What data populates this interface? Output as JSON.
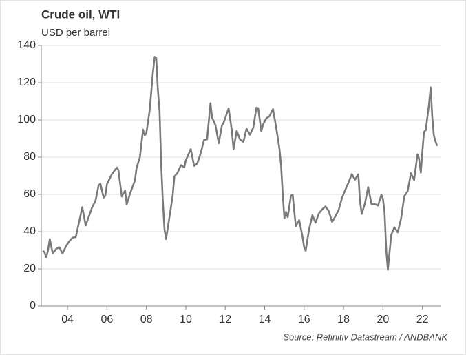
{
  "chart_data": {
    "type": "line",
    "title": "Crude oil, WTI",
    "subtitle": "USD per barrel",
    "source": "Source: Refinitiv Datastream / ANDBANK",
    "color": "#7a7a7a",
    "grid": true,
    "xlim": [
      2002.67,
      2022.92
    ],
    "xticks": [
      {
        "value": 2004,
        "label": "04"
      },
      {
        "value": 2006,
        "label": "06"
      },
      {
        "value": 2008,
        "label": "08"
      },
      {
        "value": 2010,
        "label": "10"
      },
      {
        "value": 2012,
        "label": "12"
      },
      {
        "value": 2014,
        "label": "14"
      },
      {
        "value": 2016,
        "label": "16"
      },
      {
        "value": 2018,
        "label": "18"
      },
      {
        "value": 2020,
        "label": "20"
      },
      {
        "value": 2022,
        "label": "22"
      }
    ],
    "ylim": [
      0,
      140
    ],
    "yticks": [
      0,
      20,
      40,
      60,
      80,
      100,
      120,
      140
    ],
    "x": [
      2002.75,
      2002.83,
      2002.92,
      2003.0,
      2003.1,
      2003.25,
      2003.42,
      2003.58,
      2003.75,
      2003.92,
      2004.08,
      2004.25,
      2004.42,
      2004.58,
      2004.75,
      2004.83,
      2004.92,
      2005.08,
      2005.25,
      2005.42,
      2005.58,
      2005.67,
      2005.83,
      2005.92,
      2006.0,
      2006.25,
      2006.5,
      2006.58,
      2006.75,
      2006.92,
      2007.0,
      2007.17,
      2007.42,
      2007.5,
      2007.67,
      2007.83,
      2007.92,
      2008.0,
      2008.17,
      2008.33,
      2008.42,
      2008.5,
      2008.58,
      2008.67,
      2008.75,
      2008.83,
      2008.92,
      2009.0,
      2009.17,
      2009.33,
      2009.42,
      2009.58,
      2009.75,
      2009.92,
      2010.0,
      2010.25,
      2010.42,
      2010.58,
      2010.75,
      2010.92,
      2011.08,
      2011.25,
      2011.33,
      2011.5,
      2011.67,
      2011.83,
      2011.92,
      2012.17,
      2012.33,
      2012.42,
      2012.58,
      2012.75,
      2012.92,
      2013.08,
      2013.25,
      2013.42,
      2013.58,
      2013.67,
      2013.83,
      2013.92,
      2014.08,
      2014.25,
      2014.42,
      2014.58,
      2014.75,
      2014.83,
      2014.92,
      2015.0,
      2015.08,
      2015.17,
      2015.33,
      2015.42,
      2015.5,
      2015.58,
      2015.75,
      2015.92,
      2016.0,
      2016.08,
      2016.25,
      2016.42,
      2016.58,
      2016.75,
      2016.92,
      2017.08,
      2017.25,
      2017.42,
      2017.58,
      2017.75,
      2017.92,
      2018.08,
      2018.25,
      2018.42,
      2018.58,
      2018.75,
      2018.83,
      2018.92,
      2019.08,
      2019.25,
      2019.42,
      2019.58,
      2019.75,
      2019.92,
      2020.0,
      2020.08,
      2020.17,
      2020.25,
      2020.33,
      2020.42,
      2020.58,
      2020.75,
      2020.92,
      2021.08,
      2021.25,
      2021.42,
      2021.58,
      2021.75,
      2021.83,
      2021.92,
      2022.0,
      2022.08,
      2022.17,
      2022.33,
      2022.42,
      2022.5,
      2022.58,
      2022.67,
      2022.75
    ],
    "values": [
      29.7,
      28.9,
      26.3,
      29.4,
      36.0,
      28.3,
      30.7,
      31.6,
      28.3,
      32.1,
      34.7,
      36.7,
      37.1,
      44.9,
      53.1,
      48.5,
      43.3,
      48.1,
      53.1,
      56.6,
      65.0,
      65.6,
      58.3,
      59.4,
      65.5,
      70.9,
      74.4,
      73.1,
      58.9,
      62.0,
      54.6,
      60.4,
      67.5,
      74.1,
      79.9,
      94.8,
      91.7,
      93.0,
      105.5,
      125.4,
      133.9,
      133.4,
      116.7,
      104.1,
      76.6,
      57.3,
      41.1,
      36.0,
      47.9,
      59.0,
      69.6,
      71.6,
      75.7,
      74.5,
      78.3,
      84.3,
      75.3,
      76.6,
      81.9,
      89.2,
      89.6,
      109.0,
      101.3,
      97.3,
      87.5,
      97.0,
      98.6,
      106.2,
      94.7,
      84.3,
      94.1,
      89.5,
      88.2,
      95.3,
      92.0,
      95.8,
      106.6,
      106.3,
      93.9,
      97.6,
      100.8,
      102.1,
      105.8,
      96.1,
      84.4,
      75.8,
      59.3,
      47.2,
      50.6,
      47.8,
      59.3,
      59.8,
      50.9,
      42.9,
      46.2,
      37.2,
      31.7,
      29.8,
      41.1,
      48.8,
      44.8,
      49.8,
      52.0,
      53.5,
      51.1,
      45.2,
      48.1,
      51.6,
      58.0,
      62.2,
      66.3,
      70.9,
      67.9,
      70.8,
      57.0,
      49.5,
      54.9,
      63.9,
      54.7,
      54.8,
      54.0,
      59.8,
      57.5,
      50.5,
      29.2,
      19.5,
      28.5,
      38.3,
      42.3,
      39.6,
      47.1,
      59.0,
      61.7,
      71.4,
      67.7,
      81.5,
      79.2,
      71.7,
      83.2,
      93.6,
      94.5,
      108.0,
      117.5,
      101.6,
      91.7,
      88.3,
      86.0
    ]
  }
}
